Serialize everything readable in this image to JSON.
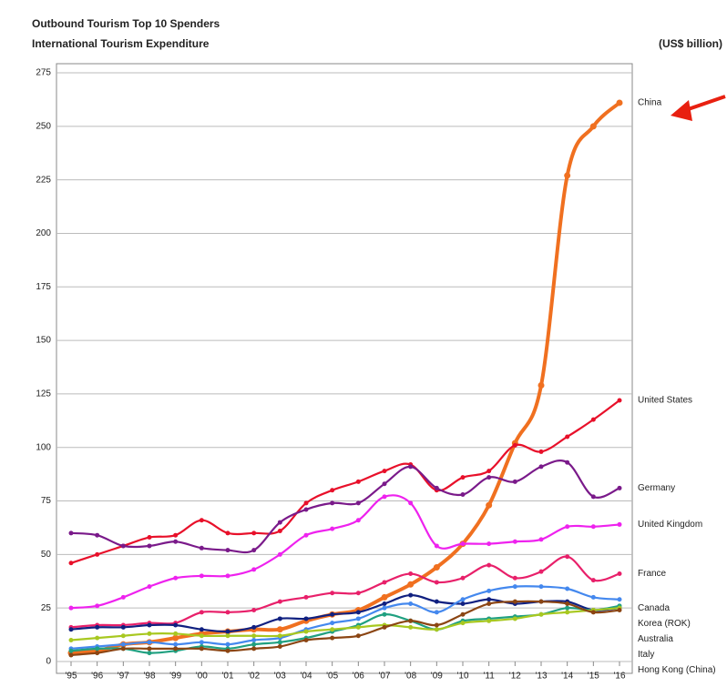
{
  "chart_data": {
    "type": "line",
    "title": "Outbound Tourism Top 10 Spenders",
    "subtitle": "International Tourism Expenditure",
    "y_unit": "(US$ billion)",
    "categories": [
      "'95",
      "'96",
      "'97",
      "'98",
      "'99",
      "'00",
      "'01",
      "'02",
      "'03",
      "'04",
      "'05",
      "'06",
      "'07",
      "'08",
      "'09",
      "'10",
      "'11",
      "'12",
      "'13",
      "'14",
      "'15",
      "'16"
    ],
    "ylim": [
      0,
      275
    ],
    "yticks": [
      0,
      25,
      50,
      75,
      100,
      125,
      150,
      175,
      200,
      225,
      250,
      275
    ],
    "grid": true,
    "series": [
      {
        "name": "China",
        "color": "#f07020",
        "values": [
          4,
          5,
          8,
          9,
          11,
          13,
          14,
          15,
          15,
          19,
          22,
          24,
          30,
          36,
          44,
          55,
          73,
          102,
          129,
          227,
          250,
          261
        ]
      },
      {
        "name": "United States",
        "color": "#e8102a",
        "values": [
          46,
          50,
          54,
          58,
          59,
          66,
          60,
          60,
          61,
          74,
          80,
          84,
          89,
          92,
          80,
          86,
          89,
          101,
          98,
          105,
          113,
          122
        ]
      },
      {
        "name": "Germany",
        "color": "#7a1a8a",
        "values": [
          60,
          59,
          54,
          54,
          56,
          53,
          52,
          52,
          65,
          71,
          74,
          74,
          83,
          91,
          81,
          78,
          86,
          84,
          91,
          93,
          77,
          81
        ]
      },
      {
        "name": "United Kingdom",
        "color": "#ee22ee",
        "values": [
          25,
          26,
          30,
          35,
          39,
          40,
          40,
          43,
          50,
          59,
          62,
          66,
          77,
          74,
          54,
          55,
          55,
          56,
          57,
          63,
          63,
          64
        ]
      },
      {
        "name": "France",
        "color": "#e8206a",
        "values": [
          16,
          17,
          17,
          18,
          18,
          23,
          23,
          24,
          28,
          30,
          32,
          32,
          37,
          41,
          37,
          39,
          45,
          39,
          42,
          49,
          38,
          41
        ]
      },
      {
        "name": "Canada",
        "color": "#102080",
        "values": [
          15,
          16,
          16,
          17,
          17,
          15,
          14,
          16,
          20,
          20,
          22,
          23,
          27,
          31,
          28,
          27,
          29,
          27,
          28,
          28,
          24,
          25
        ]
      },
      {
        "name": "Korea (ROK)",
        "color": "#4488ee",
        "values": [
          6,
          7,
          8,
          9,
          8,
          9,
          8,
          10,
          11,
          15,
          18,
          20,
          25,
          27,
          23,
          29,
          33,
          35,
          35,
          34,
          30,
          29
        ]
      },
      {
        "name": "Australia",
        "color": "#20a080",
        "values": [
          5,
          6,
          6,
          4,
          5,
          7,
          6,
          8,
          9,
          11,
          14,
          17,
          22,
          19,
          15,
          19,
          20,
          21,
          22,
          25,
          24,
          26
        ]
      },
      {
        "name": "Italy",
        "color": "#a8c820",
        "values": [
          10,
          11,
          12,
          13,
          13,
          12,
          12,
          12,
          12,
          14,
          15,
          16,
          17,
          16,
          15,
          18,
          19,
          20,
          22,
          23,
          24,
          25
        ]
      },
      {
        "name": "Hong Kong (China)",
        "color": "#8b4513",
        "values": [
          3,
          4,
          6,
          6,
          6,
          6,
          5,
          6,
          7,
          10,
          11,
          12,
          16,
          19,
          17,
          22,
          27,
          28,
          28,
          27,
          23,
          24
        ]
      }
    ]
  }
}
